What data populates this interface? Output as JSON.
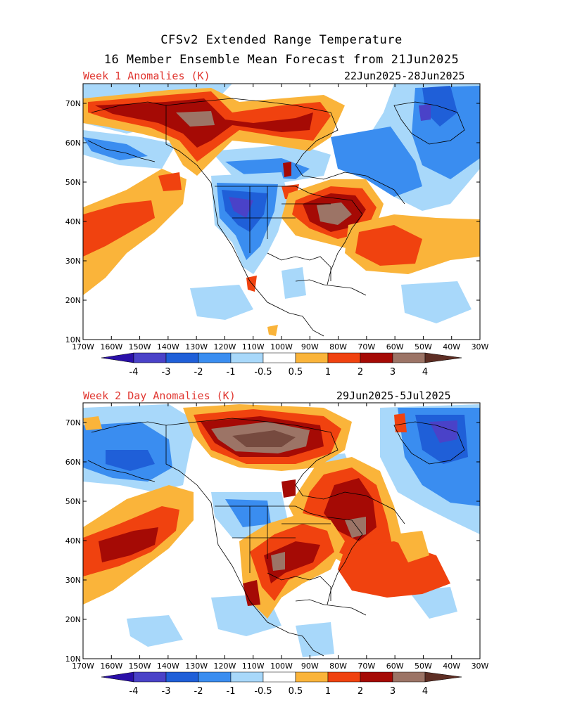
{
  "title_line1": "CFSv2 Extended Range Temperature",
  "title_line2": "16 Member Ensemble Mean Forecast from 21Jun2025",
  "panels": [
    {
      "label": "Week 1 Anomalies (K)",
      "dates": "22Jun2025-28Jun2025"
    },
    {
      "label": "Week 2 Day Anomalies (K)",
      "dates": "29Jun2025-5Jul2025"
    }
  ],
  "lat_labels": [
    "10N",
    "20N",
    "30N",
    "40N",
    "50N",
    "60N",
    "70N"
  ],
  "lon_labels": [
    "170W",
    "160W",
    "150W",
    "140W",
    "130W",
    "120W",
    "110W",
    "100W",
    "90W",
    "80W",
    "70W",
    "60W",
    "50W",
    "40W",
    "30W"
  ],
  "colorbar": {
    "labels": [
      "-4",
      "-3",
      "-2",
      "-1",
      "-0.5",
      "0.5",
      "1",
      "2",
      "3",
      "4"
    ],
    "colors": {
      "lt_m4": "#2a0fa8",
      "m4_m3": "#4a42c8",
      "m3_m2": "#1f5fd8",
      "m2_m1": "#3a8df0",
      "m1_m05": "#a8d8fa",
      "neutral": "#ffffff",
      "p05_p1": "#fab43a",
      "p1_p2": "#f0420f",
      "p2_p3": "#a50a05",
      "p3_p4": "#9c7466",
      "gt_p4": "#5e2e24"
    }
  },
  "map_bounds": {
    "lon_min": -170,
    "lon_max": -30,
    "lat_min": 10,
    "lat_max": 75
  }
}
